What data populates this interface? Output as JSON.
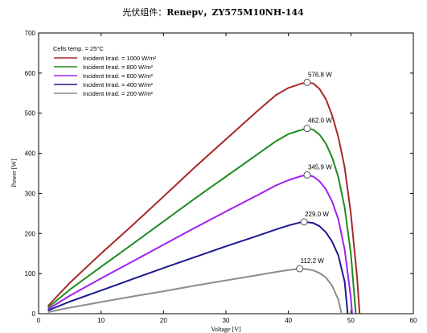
{
  "chart_data": {
    "type": "line",
    "title": "光伏组件：Renepv，ZY575M10NH-144",
    "title_prefix": "光伏组件：",
    "title_main": "Renepv，ZY575M10NH-144",
    "xlabel": "Voltage [V]",
    "ylabel": "Power [W]",
    "xlim": [
      0,
      60
    ],
    "ylim": [
      0,
      700
    ],
    "xticks": [
      0,
      10,
      20,
      30,
      40,
      50,
      60
    ],
    "yticks": [
      0,
      100,
      200,
      300,
      400,
      500,
      600,
      700
    ],
    "grid": false,
    "legend_position": "top-left",
    "legend_header": "Cells temp. = 25°C",
    "series": [
      {
        "name": "Incident Irrad. = 1000 W/m²",
        "color": "#a52a2a",
        "mpp": {
          "x": 43.0,
          "y": 576.8
        },
        "mpp_label": "576.8 W",
        "points": [
          [
            1.5,
            19
          ],
          [
            5,
            77
          ],
          [
            10,
            150
          ],
          [
            15,
            220
          ],
          [
            20,
            292
          ],
          [
            25,
            365
          ],
          [
            30,
            435
          ],
          [
            35,
            505
          ],
          [
            38,
            545
          ],
          [
            40,
            563
          ],
          [
            42,
            573.5
          ],
          [
            43,
            576.8
          ],
          [
            44,
            574
          ],
          [
            45,
            560
          ],
          [
            46,
            535
          ],
          [
            47,
            495
          ],
          [
            48,
            440
          ],
          [
            49,
            365
          ],
          [
            50,
            250
          ],
          [
            51,
            90
          ],
          [
            51.4,
            0
          ]
        ]
      },
      {
        "name": "Incident Irrad. = 800 W/m²",
        "color": "#1e8c1e",
        "mpp": {
          "x": 43.0,
          "y": 462.0
        },
        "mpp_label": "462.0 W",
        "points": [
          [
            1.5,
            15
          ],
          [
            5,
            60
          ],
          [
            10,
            117
          ],
          [
            15,
            173
          ],
          [
            20,
            230
          ],
          [
            25,
            287
          ],
          [
            30,
            342
          ],
          [
            35,
            397
          ],
          [
            38,
            430
          ],
          [
            40,
            448
          ],
          [
            42,
            458
          ],
          [
            43,
            462
          ],
          [
            44,
            459
          ],
          [
            45,
            446
          ],
          [
            46,
            424
          ],
          [
            47,
            390
          ],
          [
            48,
            340
          ],
          [
            49,
            265
          ],
          [
            50,
            150
          ],
          [
            50.8,
            0
          ]
        ]
      },
      {
        "name": "Incident Irrad. = 600 W/m²",
        "color": "#a020f0",
        "mpp": {
          "x": 43.0,
          "y": 345.9
        },
        "mpp_label": "345.9 W",
        "points": [
          [
            1.5,
            11
          ],
          [
            5,
            45
          ],
          [
            10,
            88
          ],
          [
            15,
            130
          ],
          [
            20,
            172
          ],
          [
            25,
            214
          ],
          [
            30,
            255
          ],
          [
            35,
            295
          ],
          [
            38,
            320
          ],
          [
            40,
            333
          ],
          [
            42,
            343
          ],
          [
            43,
            345.9
          ],
          [
            44,
            342
          ],
          [
            45,
            330
          ],
          [
            46,
            310
          ],
          [
            47,
            280
          ],
          [
            48,
            235
          ],
          [
            49,
            160
          ],
          [
            50,
            40
          ],
          [
            50.2,
            0
          ]
        ]
      },
      {
        "name": "Incident Irrad. = 400 W/m²",
        "color": "#1a1a8c",
        "mpp": {
          "x": 42.5,
          "y": 229.0
        },
        "mpp_label": "229.0 W",
        "points": [
          [
            1.5,
            8
          ],
          [
            5,
            30
          ],
          [
            10,
            58
          ],
          [
            15,
            86
          ],
          [
            20,
            114
          ],
          [
            25,
            141
          ],
          [
            30,
            168
          ],
          [
            35,
            194
          ],
          [
            38,
            210
          ],
          [
            40,
            220
          ],
          [
            42,
            228
          ],
          [
            42.5,
            229
          ],
          [
            44,
            226
          ],
          [
            45,
            218
          ],
          [
            46,
            203
          ],
          [
            47,
            180
          ],
          [
            48,
            145
          ],
          [
            49,
            80
          ],
          [
            49.5,
            0
          ]
        ]
      },
      {
        "name": "Incident Irrad. = 200 W/m²",
        "color": "#8c8c8c",
        "mpp": {
          "x": 41.8,
          "y": 112.2
        },
        "mpp_label": "112.2 W",
        "points": [
          [
            1.5,
            4
          ],
          [
            5,
            15
          ],
          [
            10,
            29
          ],
          [
            15,
            43
          ],
          [
            20,
            56
          ],
          [
            25,
            70
          ],
          [
            30,
            83
          ],
          [
            35,
            96
          ],
          [
            38,
            104
          ],
          [
            40,
            109
          ],
          [
            41.8,
            112.2
          ],
          [
            43,
            111
          ],
          [
            44,
            108
          ],
          [
            45,
            101
          ],
          [
            46,
            90
          ],
          [
            47,
            70
          ],
          [
            48,
            35
          ],
          [
            48.5,
            0
          ]
        ]
      }
    ]
  }
}
